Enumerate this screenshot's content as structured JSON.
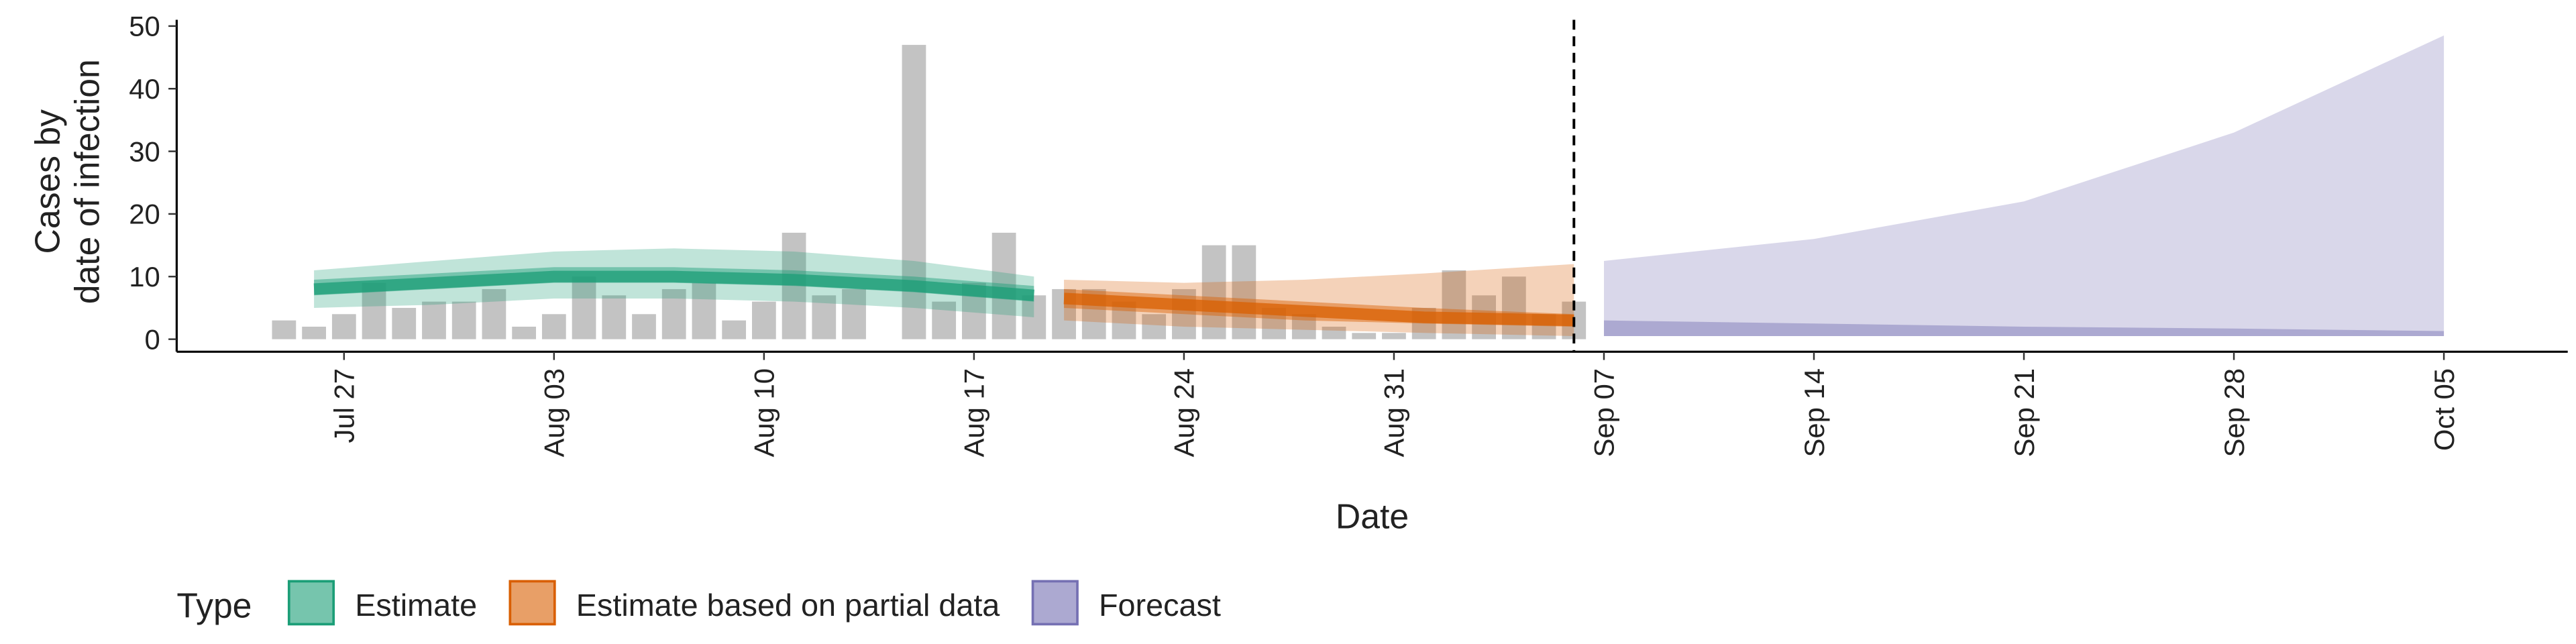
{
  "chart_data": {
    "type": "bar",
    "y_label": [
      "Cases by",
      "date of infection"
    ],
    "x_label": "Date",
    "legend_title": "Type",
    "categories": [
      "Jul 25",
      "Jul 26",
      "Jul 27",
      "Jul 28",
      "Jul 29",
      "Jul 30",
      "Jul 31",
      "Aug 01",
      "Aug 02",
      "Aug 03",
      "Aug 04",
      "Aug 05",
      "Aug 06",
      "Aug 07",
      "Aug 08",
      "Aug 09",
      "Aug 10",
      "Aug 11",
      "Aug 12",
      "Aug 13",
      "Aug 14",
      "Aug 15",
      "Aug 16",
      "Aug 17",
      "Aug 18",
      "Aug 19",
      "Aug 20",
      "Aug 21",
      "Aug 22",
      "Aug 23",
      "Aug 24",
      "Aug 25",
      "Aug 26",
      "Aug 27",
      "Aug 28",
      "Aug 29",
      "Aug 30",
      "Aug 31",
      "Sep 01",
      "Sep 02",
      "Sep 03",
      "Sep 04",
      "Sep 05",
      "Sep 06",
      "Sep 07",
      "Sep 08",
      "Sep 09",
      "Sep 10",
      "Sep 11",
      "Sep 12",
      "Sep 13",
      "Sep 14",
      "Sep 15",
      "Sep 16",
      "Sep 17",
      "Sep 18",
      "Sep 19",
      "Sep 20",
      "Sep 21",
      "Sep 22",
      "Sep 23",
      "Sep 24",
      "Sep 25",
      "Sep 26",
      "Sep 27",
      "Sep 28",
      "Sep 29",
      "Sep 30",
      "Oct 01",
      "Oct 02",
      "Oct 03",
      "Oct 04",
      "Oct 05"
    ],
    "values": [
      3,
      2,
      4,
      9,
      5,
      6,
      6,
      8,
      2,
      4,
      10,
      7,
      4,
      8,
      9,
      3,
      6,
      17,
      7,
      8,
      0,
      47,
      6,
      9,
      17,
      7,
      8,
      8,
      6,
      4,
      8,
      15,
      15,
      5,
      4,
      2,
      1,
      1,
      5,
      11,
      7,
      10,
      4,
      6,
      null,
      null,
      null,
      null,
      null,
      null,
      null,
      null,
      null,
      null,
      null,
      null,
      null,
      null,
      null,
      null,
      null,
      null,
      null,
      null,
      null,
      null,
      null,
      null,
      null,
      null,
      null,
      null,
      null
    ],
    "color": "#a9a9a9",
    "series": [
      {
        "name": "Estimate",
        "color": "#1b9e77",
        "x": [
          "Jul 26",
          "Jul 30",
          "Aug 03",
          "Aug 07",
          "Aug 11",
          "Aug 15",
          "Aug 19"
        ],
        "median": [
          8,
          9,
          10,
          10,
          9.5,
          8.5,
          7
        ],
        "lower_50": [
          7,
          8,
          9,
          9,
          8.5,
          7.5,
          6
        ],
        "upper_50": [
          9.5,
          10.5,
          11.5,
          11.5,
          11,
          10,
          8.5
        ],
        "lower_90": [
          5,
          5.5,
          6.5,
          6.5,
          6,
          5,
          3.5
        ],
        "upper_90": [
          11,
          12.5,
          14,
          14.5,
          14,
          12.5,
          10
        ]
      },
      {
        "name": "Estimate based on partial data",
        "color": "#d95f02",
        "x": [
          "Aug 20",
          "Aug 24",
          "Aug 28",
          "Sep 01",
          "Sep 06"
        ],
        "median": [
          6.5,
          5.5,
          4.5,
          3.5,
          3
        ],
        "lower_50": [
          5,
          4,
          3,
          2.5,
          2
        ],
        "upper_50": [
          8,
          7,
          6,
          5,
          4
        ],
        "lower_90": [
          3,
          2,
          1.5,
          1,
          0.5
        ],
        "upper_90": [
          9.5,
          9,
          9.5,
          10.5,
          12
        ]
      },
      {
        "name": "Forecast",
        "color": "#7570b3",
        "x": [
          "Sep 07",
          "Sep 14",
          "Sep 21",
          "Sep 28",
          "Oct 05"
        ],
        "lower_50": [
          0.5,
          0.5,
          0.5,
          0.5,
          0.5
        ],
        "upper_50": [
          3,
          2.5,
          2,
          1.7,
          1.3
        ],
        "lower_90": [
          0.5,
          0.5,
          0.5,
          0.5,
          0.5
        ],
        "upper_90": [
          12.5,
          16,
          22,
          33,
          48.5
        ]
      }
    ],
    "vline": "Sep 06",
    "ylim": [
      -2,
      51
    ],
    "yticks": [
      0,
      10,
      20,
      30,
      40,
      50
    ],
    "xticks": [
      "Jul 27",
      "Aug 03",
      "Aug 10",
      "Aug 17",
      "Aug 24",
      "Aug 31",
      "Sep 07",
      "Sep 14",
      "Sep 21",
      "Sep 28",
      "Oct 05"
    ]
  }
}
